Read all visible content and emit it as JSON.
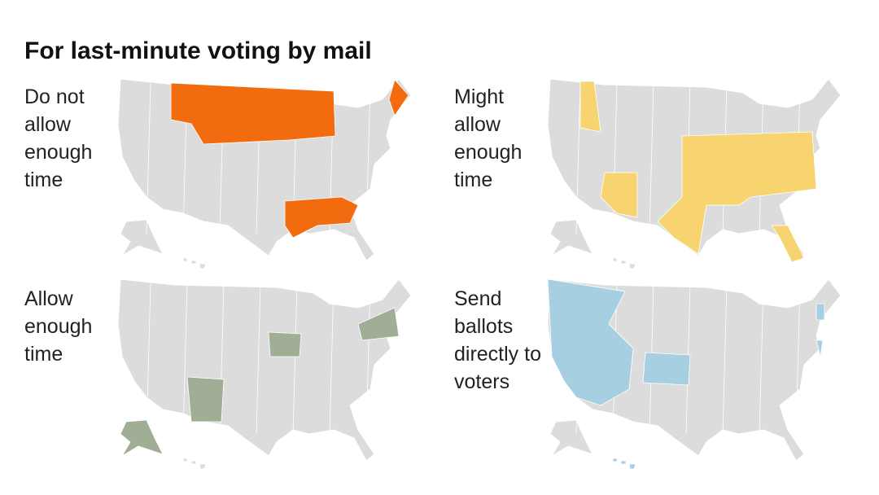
{
  "title": "For last-minute voting by mail",
  "panels": [
    {
      "label": "Do not allow enough time",
      "color": "#f26b0f"
    },
    {
      "label": "Might allow enough time",
      "color": "#f7d470"
    },
    {
      "label": "Allow enough time",
      "color": "#9fae94"
    },
    {
      "label": "Send ballots directly to voters",
      "color": "#a6cfe2"
    }
  ]
}
